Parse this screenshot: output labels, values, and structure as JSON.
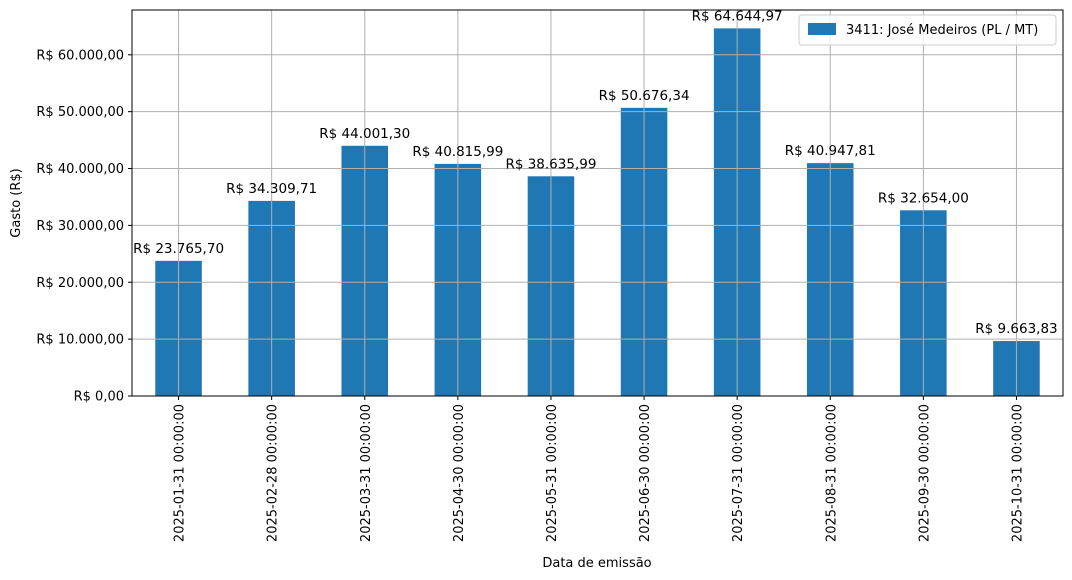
{
  "chart_data": {
    "type": "bar",
    "xlabel": "Data de emissão",
    "ylabel": "Gasto (R$)",
    "ylim": [
      0,
      67876.22
    ],
    "yticks": [
      0,
      10000,
      20000,
      30000,
      40000,
      50000,
      60000
    ],
    "ytick_labels": [
      "R$ 0,00",
      "R$ 10.000,00",
      "R$ 20.000,00",
      "R$ 30.000,00",
      "R$ 40.000,00",
      "R$ 50.000,00",
      "R$ 60.000,00"
    ],
    "grid": true,
    "legend_position": "top-right",
    "colors": {
      "bar": "#1f77b4",
      "grid": "#b0b0b0",
      "axis": "#000000"
    },
    "categories": [
      "2025-01-31 00:00:00",
      "2025-02-28 00:00:00",
      "2025-03-31 00:00:00",
      "2025-04-30 00:00:00",
      "2025-05-31 00:00:00",
      "2025-06-30 00:00:00",
      "2025-07-31 00:00:00",
      "2025-08-31 00:00:00",
      "2025-09-30 00:00:00",
      "2025-10-31 00:00:00"
    ],
    "series": [
      {
        "name": "3411: José Medeiros (PL / MT)",
        "values": [
          23765.7,
          34309.71,
          44001.3,
          40815.99,
          38635.99,
          50676.34,
          64644.97,
          40947.81,
          32654.0,
          9663.83
        ],
        "labels": [
          "R$ 23.765,70",
          "R$ 34.309,71",
          "R$ 44.001,30",
          "R$ 40.815,99",
          "R$ 38.635,99",
          "R$ 50.676,34",
          "R$ 64.644,97",
          "R$ 40.947,81",
          "R$ 32.654,00",
          "R$ 9.663,83"
        ]
      }
    ]
  }
}
